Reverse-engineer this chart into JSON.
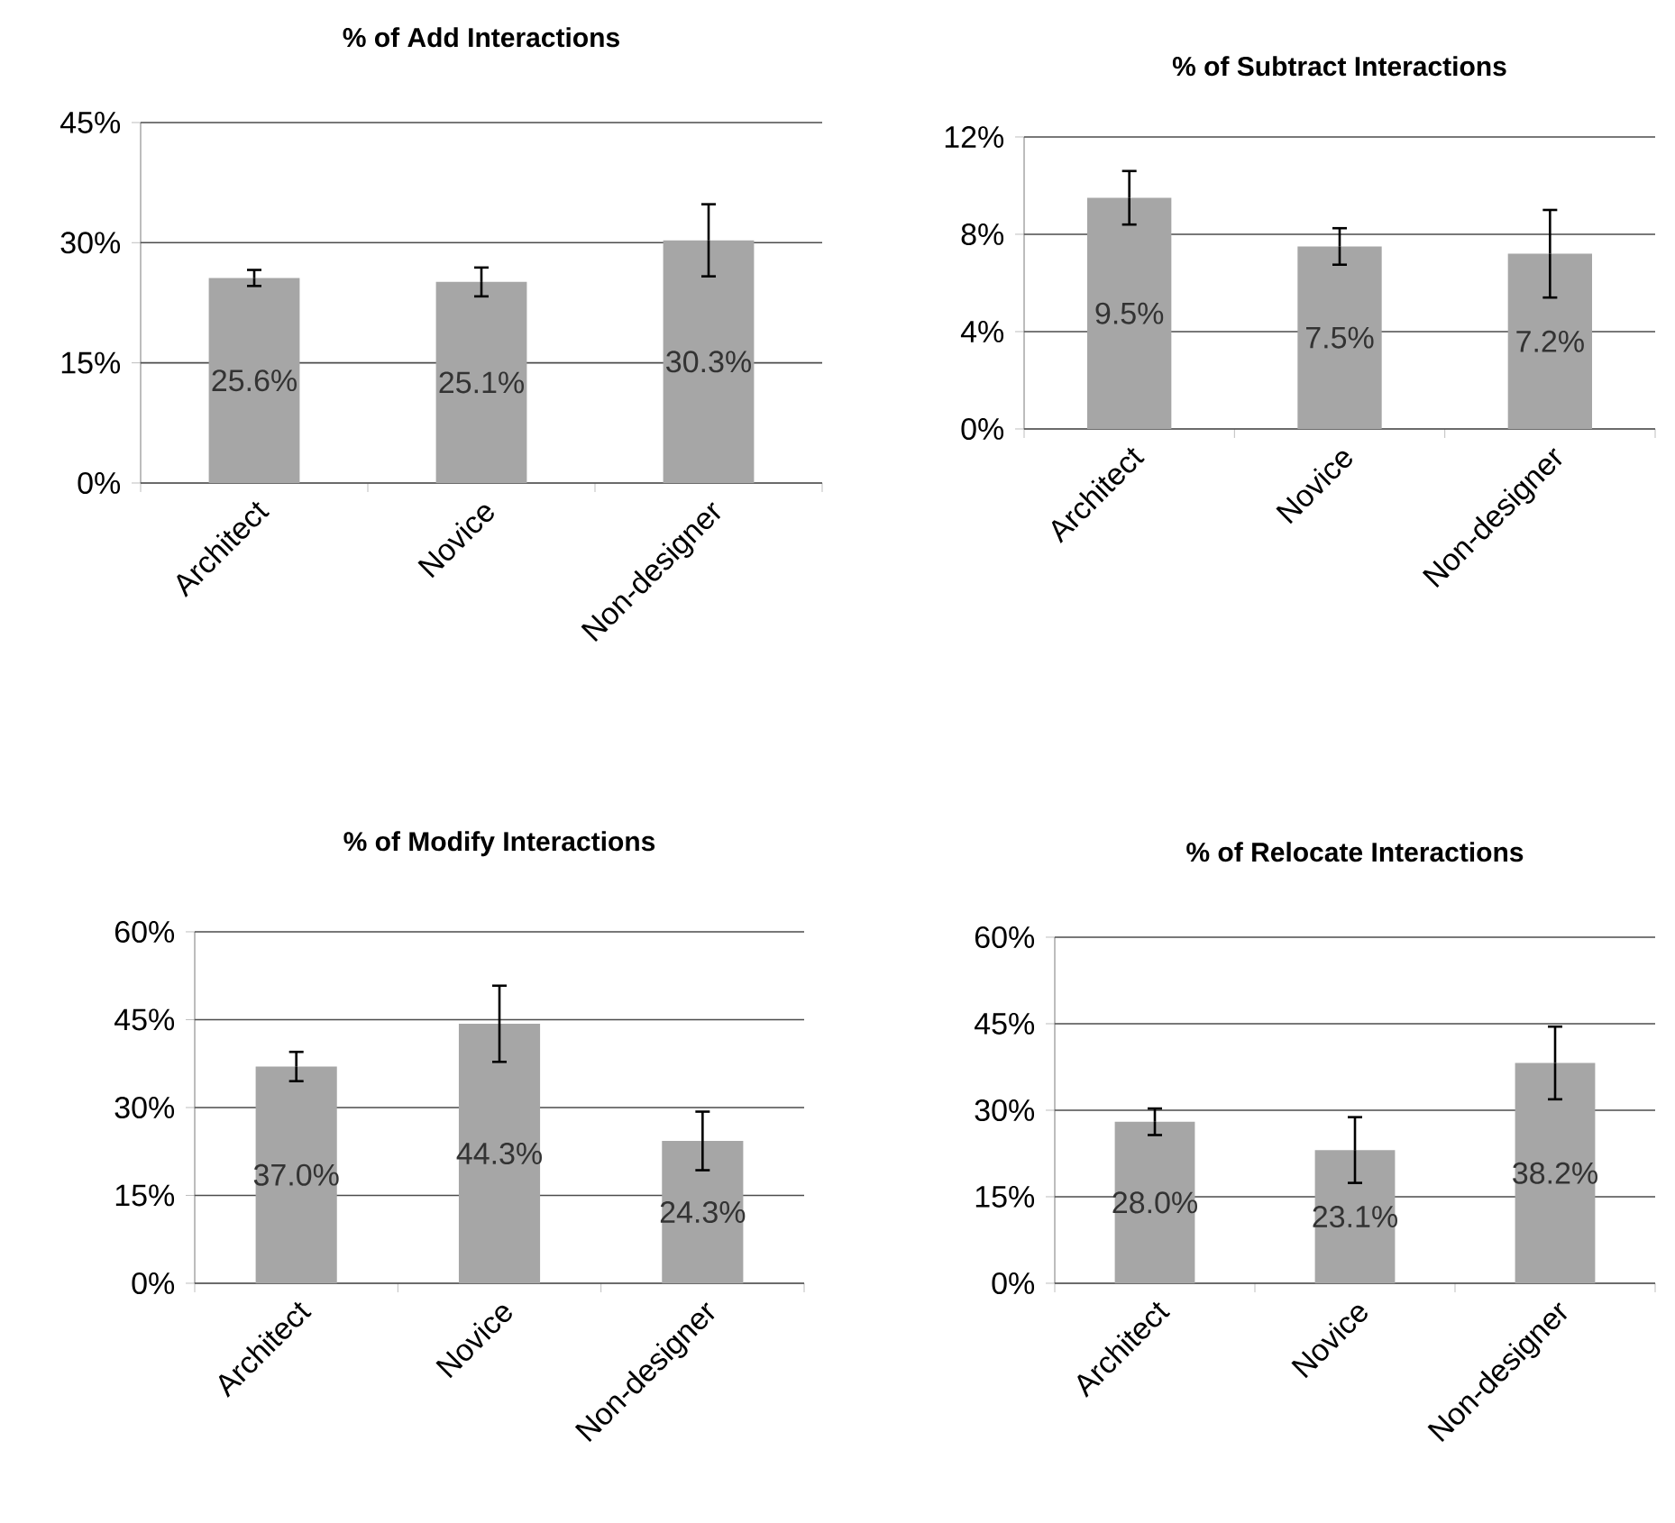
{
  "chart_data": [
    {
      "type": "bar",
      "title": "% of Add Interactions",
      "categories": [
        "Architect",
        "Novice",
        "Non-designer"
      ],
      "values": [
        25.6,
        25.1,
        30.3
      ],
      "errors": [
        1,
        1.8,
        4.5
      ],
      "value_labels": [
        "25.6%",
        "25.1%",
        "30.3%"
      ],
      "color": "#a6a6a6",
      "ylim": [
        0,
        45
      ],
      "yticks": [
        {
          "value": 0,
          "label": "0%"
        },
        {
          "value": 15,
          "label": "15%"
        },
        {
          "value": 30,
          "label": "30%"
        },
        {
          "value": 45,
          "label": "45%"
        }
      ],
      "grid": "y"
    },
    {
      "type": "bar",
      "title": "% of Subtract Interactions",
      "categories": [
        "Architect",
        "Novice",
        "Non-designer"
      ],
      "values": [
        9.5,
        7.5,
        7.2
      ],
      "errors": [
        1.1,
        0.75,
        1.8
      ],
      "value_labels": [
        "9.5%",
        "7.5%",
        "7.2%"
      ],
      "color": "#a6a6a6",
      "ylim": [
        0,
        12
      ],
      "yticks": [
        {
          "value": 0,
          "label": "0%"
        },
        {
          "value": 4,
          "label": "4%"
        },
        {
          "value": 8,
          "label": "8%"
        },
        {
          "value": 12,
          "label": "12%"
        }
      ],
      "grid": "y"
    },
    {
      "type": "bar",
      "title": "% of Modify Interactions",
      "categories": [
        "Architect",
        "Novice",
        "Non-designer"
      ],
      "values": [
        37.0,
        44.3,
        24.3
      ],
      "errors": [
        2.5,
        6.5,
        5
      ],
      "value_labels": [
        "37.0%",
        "44.3%",
        "24.3%"
      ],
      "color": "#a6a6a6",
      "ylim": [
        0,
        60
      ],
      "yticks": [
        {
          "value": 0,
          "label": "0%"
        },
        {
          "value": 15,
          "label": "15%"
        },
        {
          "value": 30,
          "label": "30%"
        },
        {
          "value": 45,
          "label": "45%"
        },
        {
          "value": 60,
          "label": "60%"
        }
      ],
      "grid": "y"
    },
    {
      "type": "bar",
      "title": "% of Relocate Interactions",
      "categories": [
        "Architect",
        "Novice",
        "Non-designer"
      ],
      "values": [
        28.0,
        23.1,
        38.2
      ],
      "errors": [
        2.3,
        5.7,
        6.3
      ],
      "value_labels": [
        "28.0%",
        "23.1%",
        "38.2%"
      ],
      "color": "#a6a6a6",
      "ylim": [
        0,
        60
      ],
      "yticks": [
        {
          "value": 0,
          "label": "0%"
        },
        {
          "value": 15,
          "label": "15%"
        },
        {
          "value": 30,
          "label": "30%"
        },
        {
          "value": 45,
          "label": "45%"
        },
        {
          "value": 60,
          "label": "60%"
        }
      ],
      "grid": "y"
    }
  ]
}
